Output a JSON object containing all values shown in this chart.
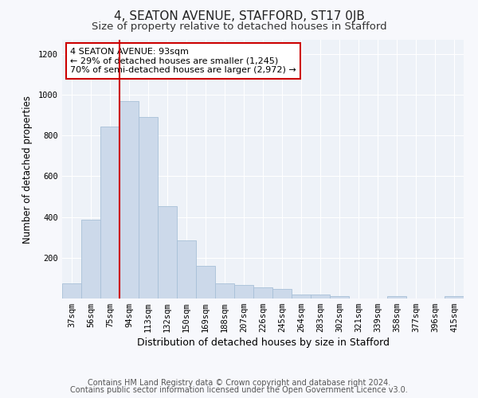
{
  "title": "4, SEATON AVENUE, STAFFORD, ST17 0JB",
  "subtitle": "Size of property relative to detached houses in Stafford",
  "xlabel": "Distribution of detached houses by size in Stafford",
  "ylabel": "Number of detached properties",
  "categories": [
    "37sqm",
    "56sqm",
    "75sqm",
    "94sqm",
    "113sqm",
    "132sqm",
    "150sqm",
    "169sqm",
    "188sqm",
    "207sqm",
    "226sqm",
    "245sqm",
    "264sqm",
    "283sqm",
    "302sqm",
    "321sqm",
    "339sqm",
    "358sqm",
    "377sqm",
    "396sqm",
    "415sqm"
  ],
  "values": [
    75,
    385,
    845,
    970,
    890,
    455,
    285,
    160,
    75,
    65,
    55,
    48,
    20,
    20,
    10,
    0,
    0,
    10,
    0,
    0,
    10
  ],
  "bar_color": "#ccd9ea",
  "bar_edge_color": "#a8c0d8",
  "property_line_color": "#cc0000",
  "annotation_text": "4 SEATON AVENUE: 93sqm\n← 29% of detached houses are smaller (1,245)\n70% of semi-detached houses are larger (2,972) →",
  "annotation_box_color": "#ffffff",
  "annotation_box_edge": "#cc0000",
  "footer_line1": "Contains HM Land Registry data © Crown copyright and database right 2024.",
  "footer_line2": "Contains public sector information licensed under the Open Government Licence v3.0.",
  "bg_color": "#f7f8fc",
  "plot_bg_color": "#eef2f8",
  "ylim": [
    0,
    1270
  ],
  "yticks": [
    0,
    200,
    400,
    600,
    800,
    1000,
    1200
  ],
  "title_fontsize": 11,
  "subtitle_fontsize": 9.5,
  "xlabel_fontsize": 9,
  "ylabel_fontsize": 8.5,
  "tick_fontsize": 7.5,
  "footer_fontsize": 7,
  "annot_fontsize": 8
}
